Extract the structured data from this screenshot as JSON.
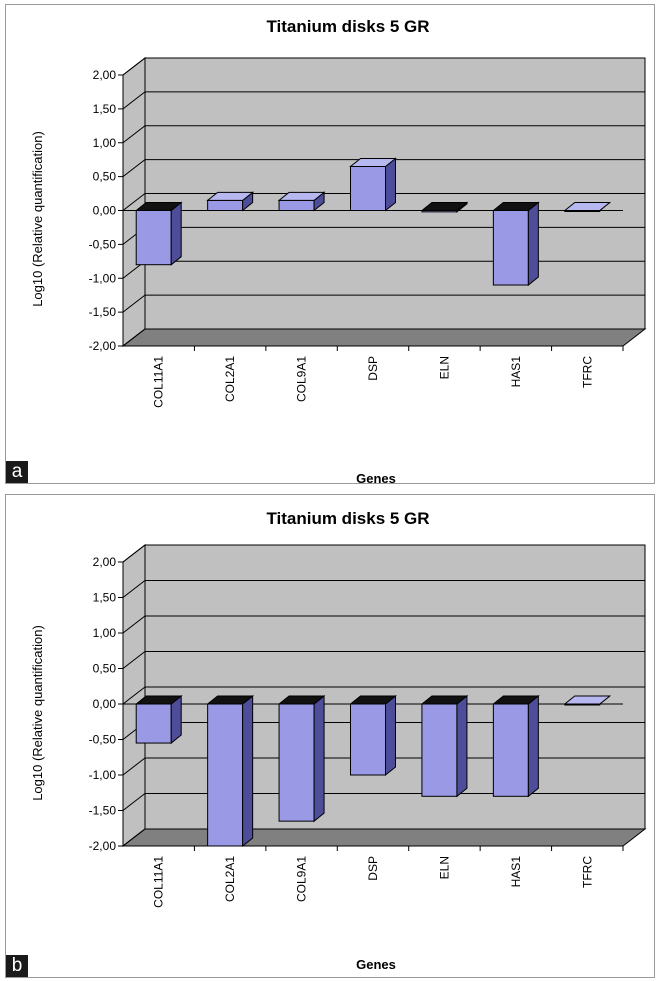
{
  "chart_data": [
    {
      "panel": "a",
      "type": "bar",
      "title": "Titanium disks 5 GR",
      "xlabel": "Genes",
      "ylabel": "Log10 (Relative quantification)",
      "categories": [
        "COL11A1",
        "COL2A1",
        "COL9A1",
        "DSP",
        "ELN",
        "HAS1",
        "TFRC"
      ],
      "series": [
        {
          "values": [
            -0.8,
            0.15,
            0.15,
            0.65,
            -0.02,
            -1.1,
            0.0
          ]
        }
      ],
      "ylim": [
        -2.0,
        2.0
      ],
      "yticks": [
        "2,00",
        "1,50",
        "1,00",
        "0,50",
        "0,00",
        "-0,50",
        "-1,00",
        "-1,50",
        "-2,00"
      ],
      "grid": true,
      "legend": "none",
      "colors": {
        "bar_front": "#9999e6",
        "bar_side": "#4d4d99",
        "bar_top": "#b8b8f0",
        "wall": "#c0c0c0",
        "floor": "#808080"
      }
    },
    {
      "panel": "b",
      "type": "bar",
      "title": "Titanium disks 5 GR",
      "xlabel": "Genes",
      "ylabel": "Log10 (Relative quantification)",
      "categories": [
        "COL11A1",
        "COL2A1",
        "COL9A1",
        "DSP",
        "ELN",
        "HAS1",
        "TFRC"
      ],
      "series": [
        {
          "values": [
            -0.55,
            -2.0,
            -1.65,
            -1.0,
            -1.3,
            -1.3,
            0.0
          ]
        }
      ],
      "ylim": [
        -2.0,
        2.0
      ],
      "yticks": [
        "2,00",
        "1,50",
        "1,00",
        "0,50",
        "0,00",
        "-0,50",
        "-1,00",
        "-1,50",
        "-2,00"
      ],
      "grid": true,
      "legend": "none",
      "colors": {
        "bar_front": "#9999e6",
        "bar_side": "#4d4d99",
        "bar_top": "#b8b8f0",
        "wall": "#c0c0c0",
        "floor": "#808080"
      }
    }
  ],
  "panels": [
    {
      "letter": "a"
    },
    {
      "letter": "b"
    }
  ]
}
